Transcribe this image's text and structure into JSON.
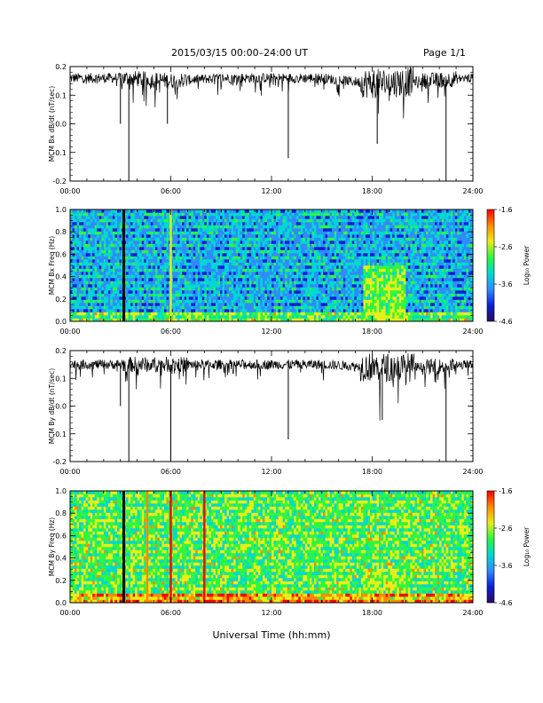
{
  "header": {
    "title": "2015/03/15  00:00–24:00 UT",
    "page": "Page 1/1"
  },
  "xaxis": {
    "label": "Universal Time (hh:mm)",
    "ticks": [
      "00:00",
      "06:00",
      "12:00",
      "18:00",
      "24:00"
    ],
    "range_hours": [
      0,
      24
    ]
  },
  "colorbar": {
    "ticks": [
      "-1.6",
      "-2.6",
      "-3.6",
      "-4.6"
    ],
    "range": [
      -4.6,
      -1.6
    ],
    "label": "Log₁₀ Power",
    "colors": [
      "#2a0a5e",
      "#0a1fd8",
      "#2f8cff",
      "#00d8d0",
      "#2ef542",
      "#e8ee16",
      "#ff8a00",
      "#ff0000"
    ]
  },
  "chart_data": [
    {
      "type": "line",
      "panel": "bx_timeseries",
      "ylabel": "MCM Bx dB/dt (nT/sec)",
      "ylim": [
        -0.2,
        0.2
      ],
      "yticks": [
        "0.2",
        "0.1",
        "0.0",
        "-0.1",
        "-0.2"
      ],
      "color": "#000000",
      "baseline": [
        {
          "hour": 0,
          "value": 0.16
        },
        {
          "hour": 3,
          "value": 0.16
        },
        {
          "hour": 6,
          "value": 0.15
        },
        {
          "hour": 9,
          "value": 0.16
        },
        {
          "hour": 12,
          "value": 0.16
        },
        {
          "hour": 15,
          "value": 0.16
        },
        {
          "hour": 18,
          "value": 0.14
        },
        {
          "hour": 21,
          "value": 0.15
        },
        {
          "hour": 24,
          "value": 0.16
        }
      ],
      "dips": [
        {
          "hour": 3.0,
          "value": 0.0
        },
        {
          "hour": 3.5,
          "value": -0.2
        },
        {
          "hour": 5.8,
          "value": 0.0
        },
        {
          "hour": 13.0,
          "value": -0.12
        },
        {
          "hour": 18.3,
          "value": -0.07
        },
        {
          "hour": 22.4,
          "value": -0.2
        }
      ]
    },
    {
      "type": "heatmap",
      "panel": "bx_spectrogram",
      "ylabel": "MCM Bx Freq (Hz)",
      "ylim": [
        0.0,
        1.0
      ],
      "yticks": [
        "1.0",
        "0.8",
        "0.6",
        "0.4",
        "0.2",
        "0.0"
      ],
      "background_log_power": -3.6,
      "features": [
        {
          "kind": "gap",
          "hour": 3.2
        },
        {
          "kind": "broadband",
          "hour": 6.0,
          "log_power": -2.6
        },
        {
          "kind": "enhancement",
          "hours": [
            17.5,
            20.0
          ],
          "freq_max": 0.5,
          "log_power": -2.8
        }
      ]
    },
    {
      "type": "line",
      "panel": "by_timeseries",
      "ylabel": "MCM By dB/dt (nT/sec)",
      "ylim": [
        -0.2,
        0.2
      ],
      "yticks": [
        "0.2",
        "0.1",
        "0.0",
        "-0.1",
        "-0.2"
      ],
      "color": "#000000",
      "baseline": [
        {
          "hour": 0,
          "value": 0.15
        },
        {
          "hour": 3,
          "value": 0.15
        },
        {
          "hour": 6,
          "value": 0.15
        },
        {
          "hour": 9,
          "value": 0.15
        },
        {
          "hour": 12,
          "value": 0.15
        },
        {
          "hour": 15,
          "value": 0.15
        },
        {
          "hour": 18,
          "value": 0.14
        },
        {
          "hour": 21,
          "value": 0.14
        },
        {
          "hour": 24,
          "value": 0.15
        }
      ],
      "dips": [
        {
          "hour": 3.0,
          "value": 0.0
        },
        {
          "hour": 3.5,
          "value": -0.2
        },
        {
          "hour": 6.0,
          "value": -0.2
        },
        {
          "hour": 13.0,
          "value": -0.12
        },
        {
          "hour": 18.6,
          "value": -0.05
        },
        {
          "hour": 22.4,
          "value": -0.2
        }
      ]
    },
    {
      "type": "heatmap",
      "panel": "by_spectrogram",
      "ylabel": "MCM By Freq (Hz)",
      "ylim": [
        0.0,
        1.0
      ],
      "yticks": [
        "1.0",
        "0.8",
        "0.6",
        "0.4",
        "0.2",
        "0.0"
      ],
      "background_log_power": -3.0,
      "features": [
        {
          "kind": "gap",
          "hour": 3.2
        },
        {
          "kind": "broadband",
          "hour": 4.6,
          "log_power": -2.2
        },
        {
          "kind": "broadband",
          "hour": 6.0,
          "log_power": -1.6
        },
        {
          "kind": "broadband",
          "hour": 8.0,
          "log_power": -1.9
        },
        {
          "kind": "enhancement",
          "hours": [
            17.5,
            20.0
          ],
          "freq_max": 0.3,
          "log_power": -2.8
        }
      ]
    }
  ]
}
